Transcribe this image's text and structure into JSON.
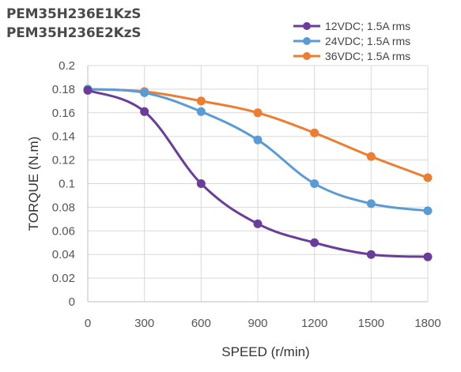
{
  "header": {
    "title_line_1": "PEM35H236E1KzS",
    "title_line_2": "PEM35H236E2KzS"
  },
  "chart_data": {
    "type": "line",
    "x": [
      0,
      300,
      600,
      900,
      1200,
      1500,
      1800
    ],
    "xlabel": "SPEED (r/min)",
    "ylabel": "TORQUE (N.m)",
    "xlim": [
      0,
      1800
    ],
    "ylim": [
      0,
      0.2
    ],
    "x_ticks": [
      "0",
      "300",
      "600",
      "900",
      "1200",
      "1500",
      "1800"
    ],
    "y_ticks": [
      "0",
      "0.02",
      "0.04",
      "0.06",
      "0.08",
      "0.1",
      "0.12",
      "0.14",
      "0.16",
      "0.18",
      "0.2"
    ],
    "grid": "both",
    "legend_position": "top-right",
    "series": [
      {
        "name": "12VDC; 1.5A rms",
        "color": "#6a3d9a",
        "values": [
          0.179,
          0.161,
          0.1,
          0.066,
          0.05,
          0.04,
          0.038
        ]
      },
      {
        "name": "24VDC; 1.5A rms",
        "color": "#5b9bd5",
        "values": [
          0.18,
          0.177,
          0.161,
          0.137,
          0.1,
          0.083,
          0.077
        ]
      },
      {
        "name": "36VDC; 1.5A rms",
        "color": "#ed7d31",
        "values": [
          0.18,
          0.178,
          0.17,
          0.16,
          0.143,
          0.123,
          0.105
        ]
      }
    ]
  }
}
